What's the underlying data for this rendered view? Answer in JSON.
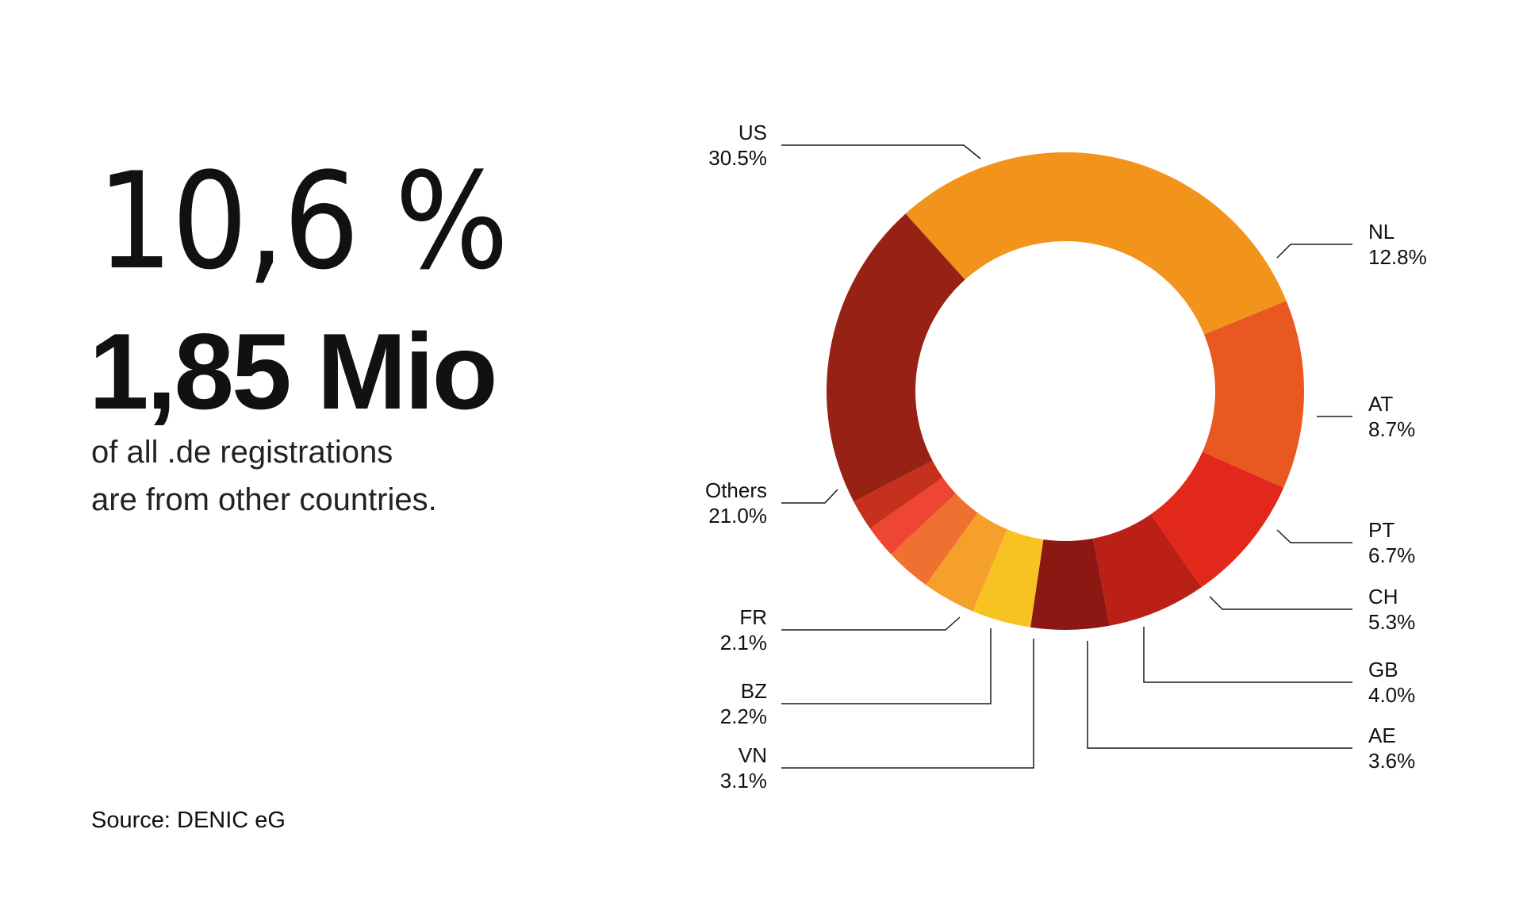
{
  "headline": {
    "percent": "10,6 %",
    "count": "1,85 Mio",
    "desc_line1": "of all .de registrations",
    "desc_line2": "are from other countries."
  },
  "source": "Source: DENIC eG",
  "chart_data": {
    "type": "pie",
    "variant": "donut",
    "title": "",
    "categories": [
      "US",
      "NL",
      "AT",
      "PT",
      "CH",
      "GB",
      "AE",
      "VN",
      "BZ",
      "FR",
      "Others"
    ],
    "values": [
      30.5,
      12.8,
      8.7,
      6.7,
      5.3,
      4.0,
      3.6,
      3.1,
      2.2,
      2.1,
      21.0
    ],
    "labels": [
      "30.5%",
      "12.8%",
      "8.7%",
      "6.7%",
      "5.3%",
      "4.0%",
      "3.6%",
      "3.1%",
      "2.2%",
      "2.1%",
      "21.0%"
    ],
    "colors": [
      "#F2931C",
      "#E85820",
      "#E2281A",
      "#BB2017",
      "#8C1713",
      "#F8C322",
      "#F6A02C",
      "#EF7030",
      "#EE4633",
      "#C5311C",
      "#982116"
    ],
    "legend": "none"
  }
}
